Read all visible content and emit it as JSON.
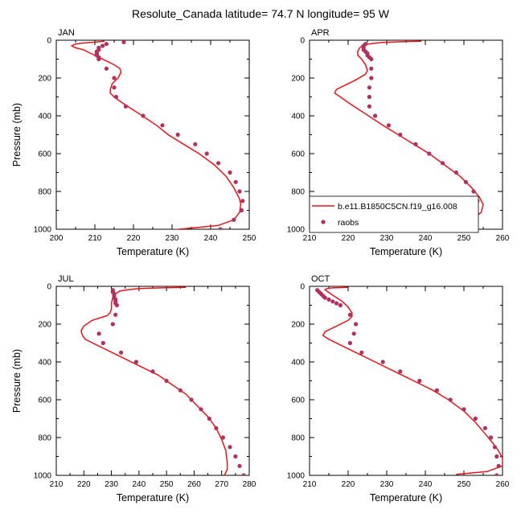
{
  "title": "Resolute_Canada  latitude= 74.7 N longitude= 95 W",
  "legend": {
    "model_label": "b.e11.B1850C5CN.f19_g16.008",
    "obs_label": "raobs",
    "model_color": "#e8141a",
    "obs_color": "#b0305e"
  },
  "chart_data": [
    {
      "type": "line",
      "panel": "JAN",
      "xlabel": "Temperature (K)",
      "ylabel": "Pressure (mb)",
      "xlim": [
        200,
        250
      ],
      "ylim": [
        1000,
        0
      ],
      "xticks": [
        200,
        210,
        220,
        230,
        240,
        250
      ],
      "yticks": [
        0,
        200,
        400,
        600,
        800,
        1000
      ],
      "series": [
        {
          "name": "b.e11.B1850C5CN.f19_g16.008",
          "style": "line",
          "points": [
            [
              212.5,
              5
            ],
            [
              210,
              10
            ],
            [
              207,
              15
            ],
            [
              205,
              20
            ],
            [
              204,
              30
            ],
            [
              205,
              40
            ],
            [
              207,
              50
            ],
            [
              209,
              70
            ],
            [
              211,
              90
            ],
            [
              213,
              110
            ],
            [
              215,
              130
            ],
            [
              216.5,
              150
            ],
            [
              216.8,
              170
            ],
            [
              216,
              200
            ],
            [
              214.5,
              230
            ],
            [
              214,
              260
            ],
            [
              214,
              280
            ],
            [
              215,
              300
            ],
            [
              217,
              330
            ],
            [
              220,
              370
            ],
            [
              223,
              410
            ],
            [
              226,
              450
            ],
            [
              229,
              500
            ],
            [
              233,
              550
            ],
            [
              237,
              600
            ],
            [
              241,
              660
            ],
            [
              244,
              720
            ],
            [
              246,
              780
            ],
            [
              247.5,
              840
            ],
            [
              247.8,
              870
            ],
            [
              247.5,
              910
            ],
            [
              246,
              950
            ],
            [
              242,
              980
            ],
            [
              237,
              990
            ],
            [
              229,
              1005
            ]
          ]
        },
        {
          "name": "raobs",
          "style": "marker",
          "points": [
            [
              217.5,
              10
            ],
            [
              213,
              20
            ],
            [
              212,
              30
            ],
            [
              211,
              40
            ],
            [
              211,
              50
            ],
            [
              210.5,
              60
            ],
            [
              210.5,
              70
            ],
            [
              210.5,
              80
            ],
            [
              211,
              90
            ],
            [
              211,
              100
            ],
            [
              213,
              150
            ],
            [
              215,
              200
            ],
            [
              215,
              250
            ],
            [
              215.5,
              300
            ],
            [
              218,
              350
            ],
            [
              222.5,
              400
            ],
            [
              227.5,
              450
            ],
            [
              231.5,
              500
            ],
            [
              236,
              550
            ],
            [
              239,
              600
            ],
            [
              242,
              650
            ],
            [
              245,
              700
            ],
            [
              246.5,
              750
            ],
            [
              247.5,
              800
            ],
            [
              248.3,
              850
            ],
            [
              248,
              900
            ],
            [
              246,
              950
            ],
            [
              242.5,
              1000
            ]
          ]
        }
      ]
    },
    {
      "type": "line",
      "panel": "APR",
      "xlabel": "Temperature (K)",
      "ylabel": "",
      "xlim": [
        210,
        260
      ],
      "ylim": [
        1000,
        0
      ],
      "xticks": [
        210,
        220,
        230,
        240,
        250,
        260
      ],
      "yticks": [
        0,
        200,
        400,
        600,
        800,
        1000
      ],
      "series": [
        {
          "name": "b.e11.B1850C5CN.f19_g16.008",
          "style": "line",
          "points": [
            [
              239,
              5
            ],
            [
              234,
              8
            ],
            [
              229,
              12
            ],
            [
              226,
              18
            ],
            [
              224,
              25
            ],
            [
              223,
              40
            ],
            [
              222.5,
              60
            ],
            [
              222.5,
              80
            ],
            [
              223.5,
              100
            ],
            [
              224.5,
              130
            ],
            [
              225,
              160
            ],
            [
              224.5,
              180
            ],
            [
              222,
              210
            ],
            [
              219,
              240
            ],
            [
              217,
              260
            ],
            [
              216.5,
              280
            ],
            [
              218,
              300
            ],
            [
              220,
              330
            ],
            [
              223,
              370
            ],
            [
              226,
              410
            ],
            [
              229,
              450
            ],
            [
              233,
              500
            ],
            [
              237,
              550
            ],
            [
              241,
              600
            ],
            [
              245,
              660
            ],
            [
              249,
              720
            ],
            [
              252,
              780
            ],
            [
              254,
              830
            ],
            [
              255,
              870
            ],
            [
              254.5,
              910
            ],
            [
              252,
              950
            ],
            [
              248,
              990
            ],
            [
              244,
              1010
            ]
          ]
        },
        {
          "name": "raobs",
          "style": "marker",
          "points": [
            [
              224.5,
              20
            ],
            [
              224,
              30
            ],
            [
              224,
              40
            ],
            [
              224,
              50
            ],
            [
              224.5,
              60
            ],
            [
              225,
              70
            ],
            [
              225,
              80
            ],
            [
              225.5,
              90
            ],
            [
              226,
              100
            ],
            [
              226,
              150
            ],
            [
              226,
              200
            ],
            [
              225.5,
              250
            ],
            [
              225.5,
              300
            ],
            [
              225.5,
              350
            ],
            [
              227,
              400
            ],
            [
              230.5,
              450
            ],
            [
              233.5,
              500
            ],
            [
              237.5,
              550
            ],
            [
              241,
              600
            ],
            [
              244.5,
              650
            ],
            [
              248,
              700
            ],
            [
              250.5,
              750
            ],
            [
              252.5,
              800
            ],
            [
              253.5,
              850
            ],
            [
              253,
              900
            ],
            [
              252,
              950
            ],
            [
              251,
              1000
            ]
          ]
        }
      ]
    },
    {
      "type": "line",
      "panel": "JUL",
      "xlabel": "Temperature (K)",
      "ylabel": "Pressure (mb)",
      "xlim": [
        210,
        280
      ],
      "ylim": [
        1000,
        0
      ],
      "xticks": [
        210,
        220,
        230,
        240,
        250,
        260,
        270,
        280
      ],
      "yticks": [
        0,
        200,
        400,
        600,
        800,
        1000
      ],
      "series": [
        {
          "name": "b.e11.B1850C5CN.f19_g16.008",
          "style": "line",
          "points": [
            [
              257,
              5
            ],
            [
              248,
              8
            ],
            [
              240,
              12
            ],
            [
              236,
              18
            ],
            [
              233,
              25
            ],
            [
              231.5,
              40
            ],
            [
              230.5,
              60
            ],
            [
              230,
              90
            ],
            [
              230,
              120
            ],
            [
              229.5,
              140
            ],
            [
              228.5,
              155
            ],
            [
              223,
              180
            ],
            [
              220,
              210
            ],
            [
              219,
              235
            ],
            [
              219.5,
              260
            ],
            [
              220.5,
              280
            ],
            [
              226,
              320
            ],
            [
              233,
              370
            ],
            [
              240,
              420
            ],
            [
              247,
              470
            ],
            [
              252,
              520
            ],
            [
              257,
              570
            ],
            [
              261,
              630
            ],
            [
              265,
              690
            ],
            [
              268,
              750
            ],
            [
              270,
              810
            ],
            [
              271.5,
              870
            ],
            [
              272,
              930
            ],
            [
              272,
              970
            ],
            [
              271,
              1000
            ]
          ]
        },
        {
          "name": "raobs",
          "style": "marker",
          "points": [
            [
              230.5,
              20
            ],
            [
              230.5,
              30
            ],
            [
              231,
              40
            ],
            [
              231,
              50
            ],
            [
              231,
              60
            ],
            [
              231.5,
              70
            ],
            [
              231.5,
              80
            ],
            [
              231.5,
              90
            ],
            [
              232,
              100
            ],
            [
              231.5,
              150
            ],
            [
              230.5,
              200
            ],
            [
              225.5,
              250
            ],
            [
              227,
              300
            ],
            [
              233.5,
              350
            ],
            [
              239,
              400
            ],
            [
              245,
              450
            ],
            [
              250,
              500
            ],
            [
              255,
              550
            ],
            [
              259,
              600
            ],
            [
              262.5,
              650
            ],
            [
              265.5,
              700
            ],
            [
              268,
              750
            ],
            [
              270.5,
              800
            ],
            [
              273,
              850
            ],
            [
              275,
              900
            ],
            [
              276.5,
              950
            ],
            [
              278,
              1000
            ]
          ]
        }
      ]
    },
    {
      "type": "line",
      "panel": "OCT",
      "xlabel": "Temperature (K)",
      "ylabel": "",
      "xlim": [
        210,
        260
      ],
      "ylim": [
        1000,
        0
      ],
      "xticks": [
        210,
        220,
        230,
        240,
        250,
        260
      ],
      "yticks": [
        0,
        200,
        400,
        600,
        800,
        1000
      ],
      "series": [
        {
          "name": "b.e11.B1850C5CN.f19_g16.008",
          "style": "line",
          "points": [
            [
              220,
              5
            ],
            [
              216,
              8
            ],
            [
              214.5,
              12
            ],
            [
              214,
              18
            ],
            [
              214.5,
              25
            ],
            [
              215.5,
              40
            ],
            [
              217,
              60
            ],
            [
              218.5,
              80
            ],
            [
              220,
              110
            ],
            [
              221,
              140
            ],
            [
              221,
              160
            ],
            [
              220,
              180
            ],
            [
              217,
              210
            ],
            [
              214,
              240
            ],
            [
              213.5,
              260
            ],
            [
              215,
              280
            ],
            [
              218,
              310
            ],
            [
              222,
              350
            ],
            [
              227,
              400
            ],
            [
              232,
              450
            ],
            [
              237,
              500
            ],
            [
              242,
              550
            ],
            [
              246,
              600
            ],
            [
              250,
              660
            ],
            [
              253,
              720
            ],
            [
              255.5,
              780
            ],
            [
              257.5,
              830
            ],
            [
              259,
              870
            ],
            [
              260,
              910
            ],
            [
              260,
              950
            ],
            [
              256,
              980
            ],
            [
              248,
              995
            ]
          ]
        },
        {
          "name": "raobs",
          "style": "marker",
          "points": [
            [
              212,
              20
            ],
            [
              212.5,
              30
            ],
            [
              213,
              40
            ],
            [
              213.5,
              50
            ],
            [
              214,
              60
            ],
            [
              215,
              70
            ],
            [
              216,
              80
            ],
            [
              217,
              90
            ],
            [
              218,
              100
            ],
            [
              220.5,
              150
            ],
            [
              222,
              200
            ],
            [
              221.5,
              250
            ],
            [
              220.5,
              300
            ],
            [
              223.5,
              350
            ],
            [
              229,
              400
            ],
            [
              233.5,
              450
            ],
            [
              238.5,
              500
            ],
            [
              243,
              550
            ],
            [
              246.5,
              600
            ],
            [
              250,
              650
            ],
            [
              253,
              700
            ],
            [
              255.5,
              750
            ],
            [
              257,
              800
            ],
            [
              258,
              850
            ],
            [
              258.5,
              900
            ],
            [
              259,
              950
            ],
            [
              258.5,
              1000
            ]
          ]
        }
      ]
    }
  ]
}
